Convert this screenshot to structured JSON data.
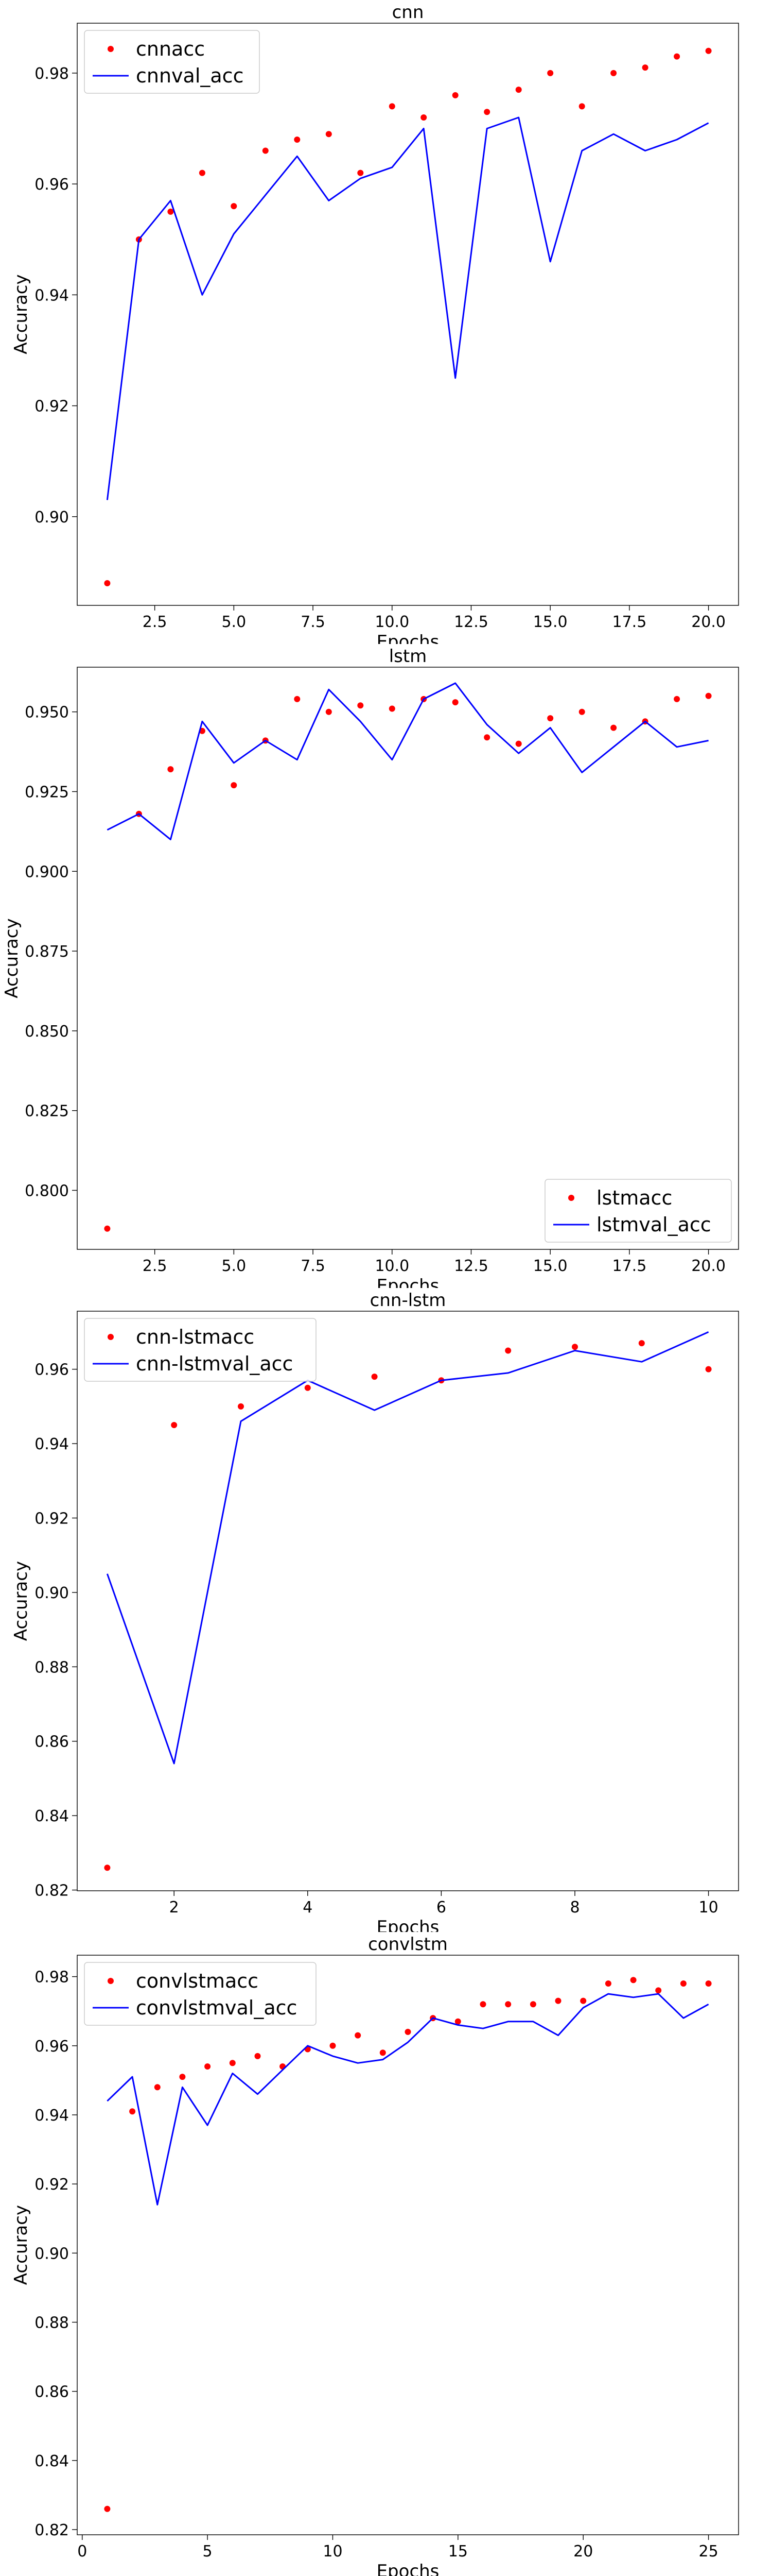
{
  "chart_data": [
    {
      "type": "line",
      "title": "cnn",
      "xlabel": "Epochs",
      "ylabel": "Accuracy",
      "xlim": [
        0.05,
        20.95
      ],
      "ylim": [
        0.884,
        0.989
      ],
      "xticks": [
        2.5,
        5.0,
        7.5,
        10.0,
        12.5,
        15.0,
        17.5,
        20.0
      ],
      "xtick_labels": [
        "2.5",
        "5.0",
        "7.5",
        "10.0",
        "12.5",
        "15.0",
        "17.5",
        "20.0"
      ],
      "yticks": [
        0.9,
        0.92,
        0.94,
        0.96,
        0.98
      ],
      "ytick_labels": [
        "0.90",
        "0.92",
        "0.94",
        "0.96",
        "0.98"
      ],
      "legend_position": "top-left",
      "grid": false,
      "series": [
        {
          "name": "cnnacc",
          "style": "points",
          "color": "#ff0000",
          "x": [
            1,
            2,
            3,
            4,
            5,
            6,
            7,
            8,
            9,
            10,
            11,
            12,
            13,
            14,
            15,
            16,
            17,
            18,
            19,
            20
          ],
          "y": [
            0.888,
            0.95,
            0.955,
            0.962,
            0.956,
            0.966,
            0.968,
            0.969,
            0.962,
            0.974,
            0.972,
            0.976,
            0.973,
            0.977,
            0.98,
            0.974,
            0.98,
            0.981,
            0.983,
            0.984
          ]
        },
        {
          "name": "cnnval_acc",
          "style": "line",
          "color": "#0000ff",
          "x": [
            1,
            2,
            3,
            4,
            5,
            6,
            7,
            8,
            9,
            10,
            11,
            12,
            13,
            14,
            15,
            16,
            17,
            18,
            19,
            20
          ],
          "y": [
            0.903,
            0.95,
            0.957,
            0.94,
            0.951,
            0.958,
            0.965,
            0.957,
            0.961,
            0.963,
            0.97,
            0.925,
            0.97,
            0.972,
            0.946,
            0.966,
            0.969,
            0.966,
            0.968,
            0.971
          ]
        }
      ]
    },
    {
      "type": "line",
      "title": "lstm",
      "xlabel": "Epochs",
      "ylabel": "Accuracy",
      "xlim": [
        0.05,
        20.95
      ],
      "ylim": [
        0.7815,
        0.964
      ],
      "xticks": [
        2.5,
        5.0,
        7.5,
        10.0,
        12.5,
        15.0,
        17.5,
        20.0
      ],
      "xtick_labels": [
        "2.5",
        "5.0",
        "7.5",
        "10.0",
        "12.5",
        "15.0",
        "17.5",
        "20.0"
      ],
      "yticks": [
        0.8,
        0.825,
        0.85,
        0.875,
        0.9,
        0.925,
        0.95
      ],
      "ytick_labels": [
        "0.800",
        "0.825",
        "0.850",
        "0.875",
        "0.900",
        "0.925",
        "0.950"
      ],
      "legend_position": "bottom-right",
      "grid": false,
      "series": [
        {
          "name": "lstmacc",
          "style": "points",
          "color": "#ff0000",
          "x": [
            1,
            2,
            3,
            4,
            5,
            6,
            7,
            8,
            9,
            10,
            11,
            12,
            13,
            14,
            15,
            16,
            17,
            18,
            19,
            20
          ],
          "y": [
            0.788,
            0.918,
            0.932,
            0.944,
            0.927,
            0.941,
            0.954,
            0.95,
            0.952,
            0.951,
            0.954,
            0.953,
            0.942,
            0.94,
            0.948,
            0.95,
            0.945,
            0.947,
            0.954,
            0.955
          ]
        },
        {
          "name": "lstmval_acc",
          "style": "line",
          "color": "#0000ff",
          "x": [
            1,
            2,
            3,
            4,
            5,
            6,
            7,
            8,
            9,
            10,
            11,
            12,
            13,
            14,
            15,
            16,
            17,
            18,
            19,
            20
          ],
          "y": [
            0.913,
            0.918,
            0.91,
            0.947,
            0.934,
            0.941,
            0.935,
            0.957,
            0.947,
            0.935,
            0.954,
            0.959,
            0.946,
            0.937,
            0.945,
            0.931,
            0.939,
            0.947,
            0.939,
            0.941
          ]
        }
      ]
    },
    {
      "type": "line",
      "title": "cnn-lstm",
      "xlabel": "Epochs",
      "ylabel": "Accuracy",
      "xlim": [
        0.55,
        10.45
      ],
      "ylim": [
        0.8198,
        0.9756
      ],
      "xticks": [
        2,
        4,
        6,
        8,
        10
      ],
      "xtick_labels": [
        "2",
        "4",
        "6",
        "8",
        "10"
      ],
      "yticks": [
        0.82,
        0.84,
        0.86,
        0.88,
        0.9,
        0.92,
        0.94,
        0.96
      ],
      "ytick_labels": [
        "0.82",
        "0.84",
        "0.86",
        "0.88",
        "0.90",
        "0.92",
        "0.94",
        "0.96"
      ],
      "legend_position": "top-left",
      "grid": false,
      "series": [
        {
          "name": "cnn-lstmacc",
          "style": "points",
          "color": "#ff0000",
          "x": [
            1,
            2,
            3,
            4,
            5,
            6,
            7,
            8,
            9,
            10
          ],
          "y": [
            0.826,
            0.945,
            0.95,
            0.955,
            0.958,
            0.957,
            0.965,
            0.966,
            0.967,
            0.96
          ]
        },
        {
          "name": "cnn-lstmval_acc",
          "style": "line",
          "color": "#0000ff",
          "x": [
            1,
            2,
            3,
            4,
            5,
            6,
            7,
            8,
            9,
            10
          ],
          "y": [
            0.905,
            0.854,
            0.946,
            0.957,
            0.949,
            0.957,
            0.959,
            0.965,
            0.962,
            0.97
          ]
        }
      ]
    },
    {
      "type": "line",
      "title": "convlstm",
      "xlabel": "Epochs",
      "ylabel": "Accuracy",
      "xlim": [
        -0.2,
        26.2
      ],
      "ylim": [
        0.8185,
        0.9862
      ],
      "xticks": [
        0,
        5,
        10,
        15,
        20,
        25
      ],
      "xtick_labels": [
        "0",
        "5",
        "10",
        "15",
        "20",
        "25"
      ],
      "yticks": [
        0.82,
        0.84,
        0.86,
        0.88,
        0.9,
        0.92,
        0.94,
        0.96,
        0.98
      ],
      "ytick_labels": [
        "0.82",
        "0.84",
        "0.86",
        "0.88",
        "0.90",
        "0.92",
        "0.94",
        "0.96",
        "0.98"
      ],
      "legend_position": "top-left",
      "grid": false,
      "series": [
        {
          "name": "convlstmacc",
          "style": "points",
          "color": "#ff0000",
          "x": [
            1,
            2,
            3,
            4,
            5,
            6,
            7,
            8,
            9,
            10,
            11,
            12,
            13,
            14,
            15,
            16,
            17,
            18,
            19,
            20,
            21,
            22,
            23,
            24,
            25
          ],
          "y": [
            0.826,
            0.941,
            0.948,
            0.951,
            0.954,
            0.955,
            0.957,
            0.954,
            0.959,
            0.96,
            0.963,
            0.958,
            0.964,
            0.968,
            0.967,
            0.972,
            0.972,
            0.972,
            0.973,
            0.973,
            0.978,
            0.979,
            0.976,
            0.978,
            0.978
          ]
        },
        {
          "name": "convlstmval_acc",
          "style": "line",
          "color": "#0000ff",
          "x": [
            1,
            2,
            3,
            4,
            5,
            6,
            7,
            8,
            9,
            10,
            11,
            12,
            13,
            14,
            15,
            16,
            17,
            18,
            19,
            20,
            21,
            22,
            23,
            24,
            25
          ],
          "y": [
            0.944,
            0.951,
            0.914,
            0.948,
            0.937,
            0.952,
            0.946,
            0.953,
            0.96,
            0.957,
            0.955,
            0.956,
            0.961,
            0.968,
            0.966,
            0.965,
            0.967,
            0.967,
            0.963,
            0.971,
            0.975,
            0.974,
            0.975,
            0.968,
            0.972
          ]
        }
      ]
    }
  ]
}
